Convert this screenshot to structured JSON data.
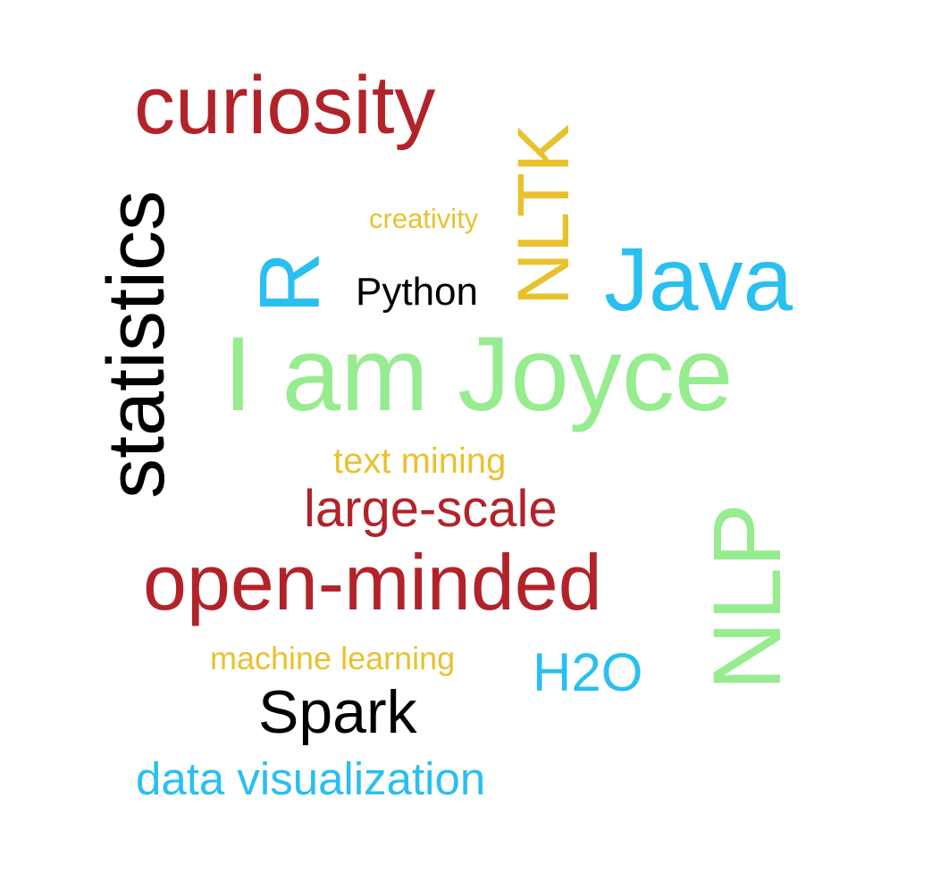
{
  "colors": {
    "red": "#b22329",
    "yellow": "#e8c22e",
    "blue": "#29bff0",
    "black": "#000000",
    "green": "#96ec8f"
  },
  "words": {
    "curiosity": {
      "text": "curiosity",
      "color": "#b22329"
    },
    "creativity": {
      "text": "creativity",
      "color": "#e8c22e"
    },
    "python": {
      "text": "Python",
      "color": "#000000"
    },
    "java": {
      "text": "Java",
      "color": "#29bff0"
    },
    "joyce": {
      "text": "I am Joyce",
      "color": "#96ec8f"
    },
    "text_mining": {
      "text": "text mining",
      "color": "#e8c22e"
    },
    "large_scale": {
      "text": "large-scale",
      "color": "#b22329"
    },
    "open_minded": {
      "text": "open-minded",
      "color": "#b22329"
    },
    "machine_learning": {
      "text": "machine learning",
      "color": "#e8c22e"
    },
    "h2o": {
      "text": "H2O",
      "color": "#29bff0"
    },
    "spark": {
      "text": "Spark",
      "color": "#000000"
    },
    "data_visualization": {
      "text": "data visualization",
      "color": "#29bff0"
    },
    "statistics": {
      "text": "statistics",
      "color": "#000000"
    },
    "r": {
      "text": "R",
      "color": "#29bff0"
    },
    "nltk": {
      "text": "NLTK",
      "color": "#e8c22e"
    },
    "nlp": {
      "text": "NLP",
      "color": "#96ec8f"
    }
  }
}
